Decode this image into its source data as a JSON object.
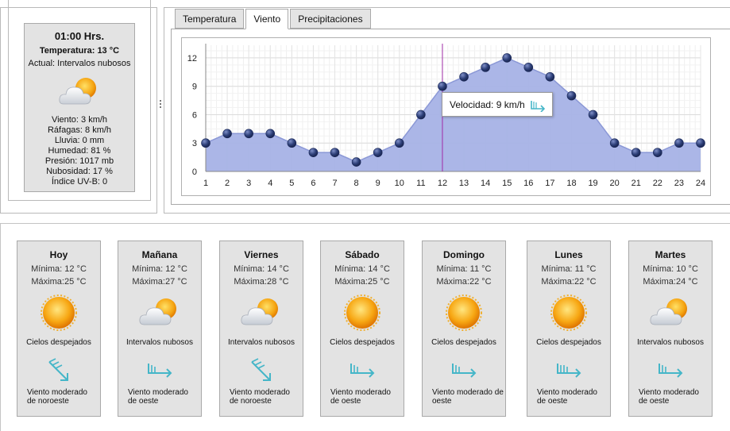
{
  "current": {
    "time": "01:00 Hrs.",
    "temperature": "Temperatura: 13 °C",
    "actual": "Actual: Intervalos nubosos",
    "icon": "partly-cloudy-icon",
    "details": [
      "Viento: 3 km/h",
      "Ráfagas: 8 km/h",
      "Lluvia: 0 mm",
      "Humedad: 81 %",
      "Presión: 1017 mb",
      "Nubosidad: 17 %",
      "Índice UV-B: 0"
    ]
  },
  "tabs": [
    "Temperatura",
    "Viento",
    "Precipitaciones"
  ],
  "active_tab": "Viento",
  "tooltip": {
    "text": "Velocidad: 9 km/h",
    "icon": "wind-west-icon"
  },
  "chart_data": {
    "type": "area",
    "x": [
      1,
      2,
      3,
      4,
      5,
      6,
      7,
      8,
      9,
      10,
      11,
      12,
      13,
      14,
      15,
      16,
      17,
      18,
      19,
      20,
      21,
      22,
      23,
      24
    ],
    "values": [
      3,
      4,
      4,
      4,
      3,
      2,
      2,
      1,
      2,
      3,
      6,
      9,
      10,
      11,
      12,
      11,
      10,
      8,
      6,
      3,
      2,
      2,
      3,
      3
    ],
    "ylim": [
      0,
      13
    ],
    "yticks": [
      0,
      3,
      6,
      9,
      12
    ],
    "xticks": [
      "1",
      "2",
      "3",
      "4",
      "5",
      "6",
      "7",
      "8",
      "9",
      "10",
      "11",
      "12",
      "13",
      "14",
      "15",
      "16",
      "17",
      "18",
      "19",
      "20",
      "21",
      "22",
      "23",
      "24"
    ],
    "highlight_x": 12,
    "grid": true,
    "fill_color": "#a7b2e6",
    "line_color": "#8b98d6",
    "marker_color": "#2d3f78",
    "crosshair_color": "#a02ca8"
  },
  "forecast": [
    {
      "day": "Hoy",
      "min": "Mínima: 12 °C",
      "max": "Máxima:25 °C",
      "icon": "sun-icon",
      "desc": "Cielos despejados",
      "wind_icon": "wind-northwest-icon",
      "wind_desc": [
        "Viento moderado",
        "de noroeste"
      ]
    },
    {
      "day": "Mañana",
      "min": "Mínima: 12 °C",
      "max": "Máxima:27 °C",
      "icon": "partly-cloudy-icon",
      "desc": "Intervalos nubosos",
      "wind_icon": "wind-west-icon",
      "wind_desc": [
        "Viento moderado",
        "de oeste"
      ]
    },
    {
      "day": "Viernes",
      "min": "Mínima: 14 °C",
      "max": "Máxima:28 °C",
      "icon": "partly-cloudy-icon",
      "desc": "Intervalos nubosos",
      "wind_icon": "wind-northwest-icon",
      "wind_desc": [
        "Viento moderado",
        "de noroeste"
      ]
    },
    {
      "day": "Sábado",
      "min": "Mínima: 14 °C",
      "max": "Máxima:25 °C",
      "icon": "sun-icon",
      "desc": "Cielos despejados",
      "wind_icon": "wind-west-icon",
      "wind_desc": [
        "Viento moderado",
        "de oeste"
      ]
    },
    {
      "day": "Domingo",
      "min": "Mínima: 11 °C",
      "max": "Máxima:22 °C",
      "icon": "sun-icon",
      "desc": "Cielos despejados",
      "wind_icon": "wind-west-icon",
      "wind_desc": [
        "Viento moderado de",
        "oeste"
      ]
    },
    {
      "day": "Lunes",
      "min": "Mínima: 11 °C",
      "max": "Máxima:22 °C",
      "icon": "sun-icon",
      "desc": "Cielos despejados",
      "wind_icon": "wind-west-strong-icon",
      "wind_desc": [
        "Viento moderado",
        "de oeste"
      ]
    },
    {
      "day": "Martes",
      "min": "Mínima: 10 °C",
      "max": "Máxima:24 °C",
      "icon": "partly-cloudy-icon",
      "desc": "Intervalos nubosos",
      "wind_icon": "wind-west-icon",
      "wind_desc": [
        "Viento moderado",
        "de oeste"
      ]
    }
  ]
}
